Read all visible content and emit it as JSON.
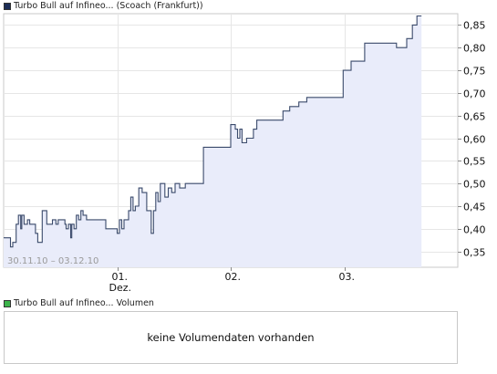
{
  "chart_data": {
    "type": "area",
    "title": "Turbo Bull auf Infineo... (Scoach (Frankfurt))",
    "legend_color": "#1c2d57",
    "line_color": "#3a4a6b",
    "fill_color": "#e9ecfa",
    "date_range": "30.11.10 – 03.12.10",
    "ylim": [
      0.315,
      0.875
    ],
    "y_ticks": [
      0.35,
      0.4,
      0.45,
      0.5,
      0.55,
      0.6,
      0.65,
      0.7,
      0.75,
      0.8,
      0.85
    ],
    "y_tick_labels": [
      "0,35",
      "0,40",
      "0,45",
      "0,50",
      "0,55",
      "0,60",
      "0,65",
      "0,70",
      "0,75",
      "0,80",
      "0,85"
    ],
    "x_ticks": [
      {
        "day": "01.",
        "sub": "Dez.",
        "t": 1.0
      },
      {
        "day": "02.",
        "sub": "",
        "t": 2.0
      },
      {
        "day": "03.",
        "sub": "",
        "t": 3.0
      }
    ],
    "x_range": [
      0.0,
      4.0
    ],
    "series": [
      {
        "values_t": [
          0.0,
          0.06,
          0.06,
          0.08,
          0.08,
          0.11,
          0.11,
          0.13,
          0.13,
          0.15,
          0.15,
          0.16,
          0.16,
          0.18,
          0.18,
          0.21,
          0.21,
          0.23,
          0.23,
          0.28,
          0.28,
          0.3,
          0.3,
          0.34,
          0.34,
          0.38,
          0.38,
          0.43,
          0.43,
          0.46,
          0.46,
          0.48,
          0.48,
          0.54,
          0.54,
          0.55,
          0.55,
          0.57,
          0.57,
          0.59,
          0.59,
          0.6,
          0.6,
          0.62,
          0.62,
          0.64,
          0.64,
          0.66,
          0.66,
          0.68,
          0.68,
          0.7,
          0.7,
          0.73,
          0.73,
          0.79,
          0.79,
          0.9,
          0.9,
          1.0,
          1.0,
          1.02,
          1.02,
          1.04,
          1.04,
          1.06,
          1.06,
          1.1,
          1.1,
          1.12,
          1.12,
          1.14,
          1.14,
          1.16,
          1.16,
          1.19,
          1.19,
          1.22,
          1.22,
          1.26,
          1.26,
          1.3,
          1.3,
          1.32,
          1.32,
          1.34,
          1.34,
          1.36,
          1.36,
          1.38,
          1.38,
          1.42,
          1.42,
          1.45,
          1.45,
          1.48,
          1.48,
          1.51,
          1.51,
          1.55,
          1.55,
          1.6,
          1.6,
          1.76,
          1.76,
          2.0,
          2.0,
          2.04,
          2.04,
          2.06,
          2.06,
          2.08,
          2.08,
          2.1,
          2.1,
          2.14,
          2.14,
          2.2,
          2.2,
          2.23,
          2.23,
          2.46,
          2.46,
          2.52,
          2.52,
          2.6,
          2.6,
          2.67,
          2.67,
          2.99,
          2.99,
          3.06,
          3.06,
          3.18,
          3.18,
          3.46,
          3.46,
          3.55,
          3.55,
          3.6,
          3.6,
          3.64,
          3.64,
          3.68,
          3.68
        ],
        "values": [
          0.38,
          0.38,
          0.36,
          0.36,
          0.37,
          0.37,
          0.41,
          0.41,
          0.43,
          0.43,
          0.4,
          0.4,
          0.43,
          0.43,
          0.41,
          0.41,
          0.42,
          0.42,
          0.41,
          0.41,
          0.39,
          0.39,
          0.37,
          0.37,
          0.44,
          0.44,
          0.41,
          0.41,
          0.42,
          0.42,
          0.41,
          0.41,
          0.42,
          0.42,
          0.41,
          0.41,
          0.4,
          0.4,
          0.41,
          0.41,
          0.38,
          0.38,
          0.41,
          0.41,
          0.4,
          0.4,
          0.43,
          0.43,
          0.42,
          0.42,
          0.44,
          0.44,
          0.43,
          0.43,
          0.42,
          0.42,
          0.42,
          0.42,
          0.4,
          0.4,
          0.39,
          0.39,
          0.42,
          0.42,
          0.4,
          0.4,
          0.42,
          0.42,
          0.44,
          0.44,
          0.47,
          0.47,
          0.44,
          0.44,
          0.45,
          0.45,
          0.49,
          0.49,
          0.48,
          0.48,
          0.44,
          0.44,
          0.39,
          0.39,
          0.44,
          0.44,
          0.48,
          0.48,
          0.46,
          0.46,
          0.5,
          0.5,
          0.47,
          0.47,
          0.49,
          0.49,
          0.48,
          0.48,
          0.5,
          0.5,
          0.49,
          0.49,
          0.5,
          0.5,
          0.58,
          0.58,
          0.63,
          0.63,
          0.62,
          0.62,
          0.6,
          0.6,
          0.62,
          0.62,
          0.59,
          0.59,
          0.6,
          0.6,
          0.62,
          0.62,
          0.64,
          0.64,
          0.66,
          0.66,
          0.67,
          0.67,
          0.68,
          0.68,
          0.69,
          0.69,
          0.75,
          0.75,
          0.77,
          0.77,
          0.81,
          0.81,
          0.8,
          0.8,
          0.82,
          0.82,
          0.85,
          0.85,
          0.87,
          0.87,
          0.87
        ]
      }
    ],
    "grid": true
  },
  "volume_panel": {
    "title": "Turbo Bull auf Infineo... Volumen",
    "legend_color": "#3cb44b",
    "message": "keine Volumendaten vorhanden"
  }
}
